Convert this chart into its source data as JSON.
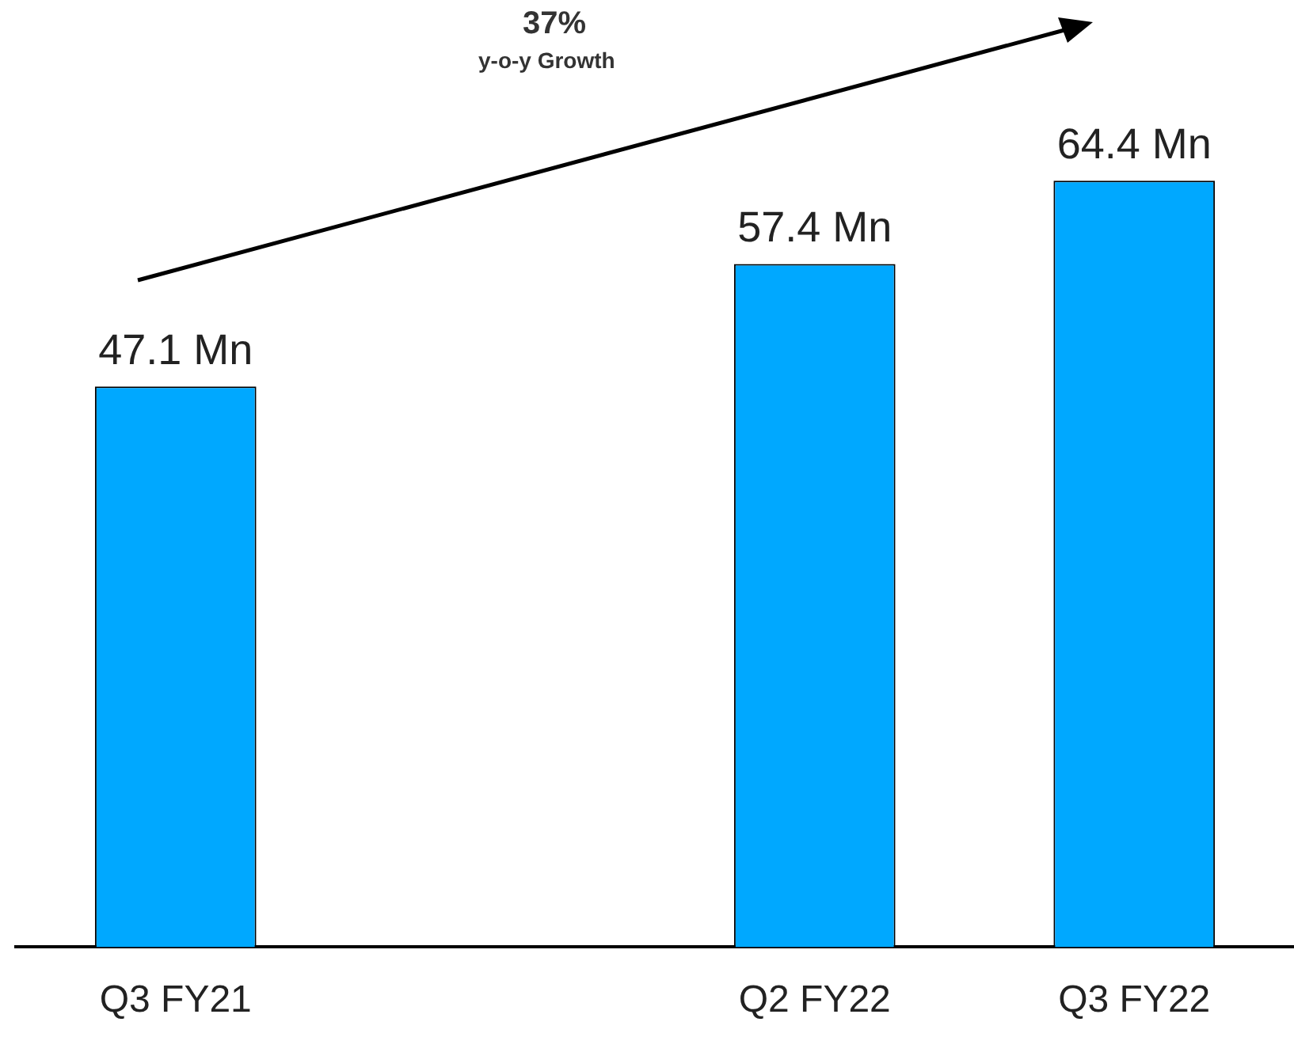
{
  "chart_data": {
    "type": "bar",
    "categories": [
      "Q3 FY21",
      null,
      "Q2 FY22",
      "Q3 FY22"
    ],
    "values": [
      47.1,
      null,
      57.4,
      64.4
    ],
    "value_labels": [
      "47.1 Mn",
      null,
      "57.4 Mn",
      "64.4 Mn"
    ],
    "color": "#00a8ff",
    "grid": false,
    "legend": false,
    "tick_labels": "x",
    "annotations": [
      "37%",
      "y-o-y Growth"
    ]
  }
}
